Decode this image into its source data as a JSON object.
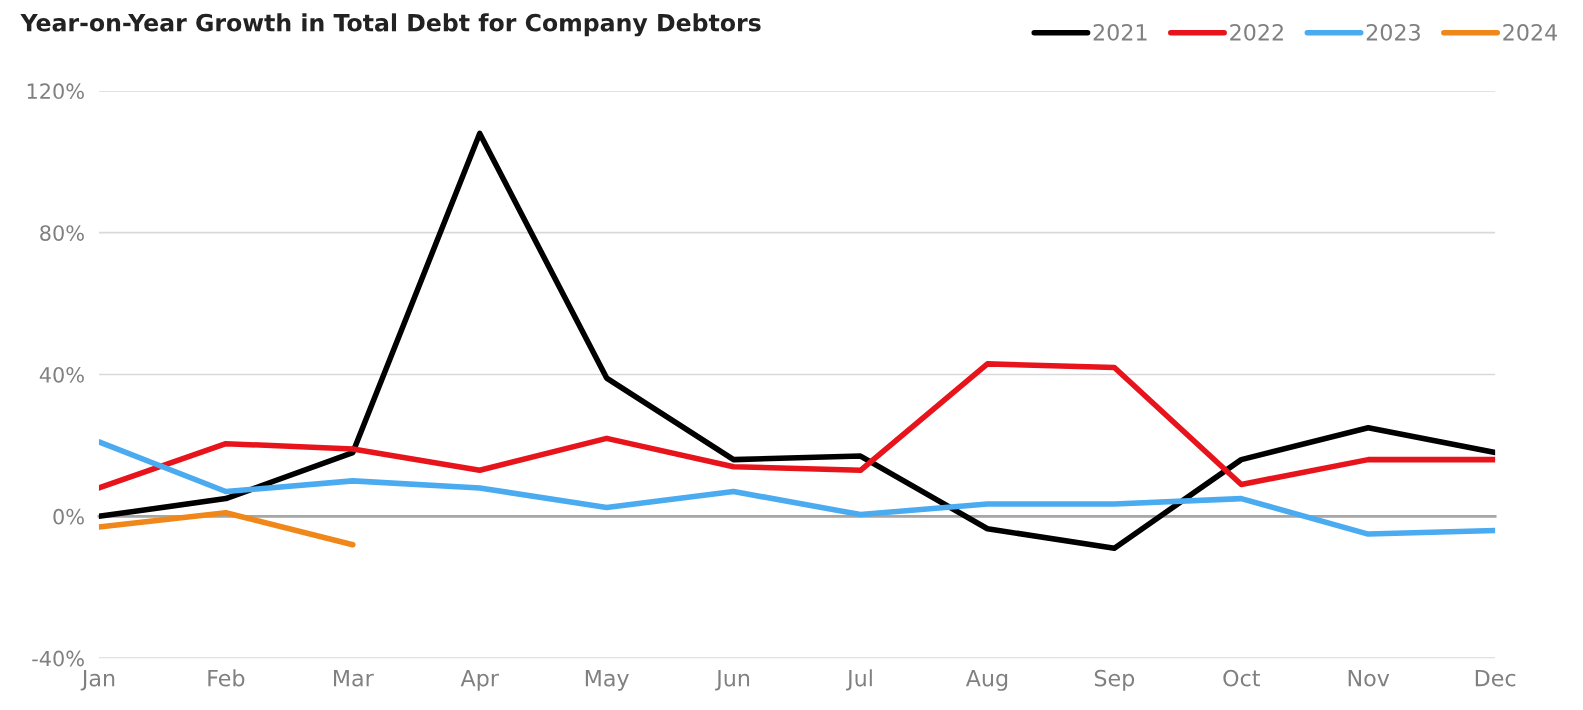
{
  "chart_data": {
    "type": "line",
    "title": "Year-on-Year Growth in Total Debt for Company Debtors",
    "categories": [
      "Jan",
      "Feb",
      "Mar",
      "Apr",
      "May",
      "Jun",
      "Jul",
      "Aug",
      "Sep",
      "Oct",
      "Nov",
      "Dec"
    ],
    "series": [
      {
        "name": "2021",
        "color": "#000000",
        "values": [
          0,
          5,
          18,
          108,
          39,
          16,
          17,
          -3.5,
          -9,
          16,
          25,
          18
        ]
      },
      {
        "name": "2022",
        "color": "#e8141c",
        "values": [
          8,
          20.5,
          19,
          13,
          22,
          14,
          13,
          43,
          42,
          9,
          16,
          16
        ]
      },
      {
        "name": "2023",
        "color": "#4aabf0",
        "values": [
          21,
          7,
          10,
          8,
          2.5,
          7,
          0.5,
          3.5,
          3.5,
          5,
          -5,
          -4
        ]
      },
      {
        "name": "2024",
        "color": "#f0871a",
        "values": [
          -3,
          1,
          -8,
          null,
          null,
          null,
          null,
          null,
          null,
          null,
          null,
          null
        ]
      }
    ],
    "ylim": [
      -40,
      120
    ],
    "yticks": [
      {
        "value": -40,
        "label": "-40%"
      },
      {
        "value": 0,
        "label": "0%"
      },
      {
        "value": 40,
        "label": "40%"
      },
      {
        "value": 80,
        "label": "80%"
      },
      {
        "value": 120,
        "label": "120%"
      }
    ],
    "grid": "y",
    "legend": "top right",
    "line_style": "solid",
    "marker": "none"
  }
}
